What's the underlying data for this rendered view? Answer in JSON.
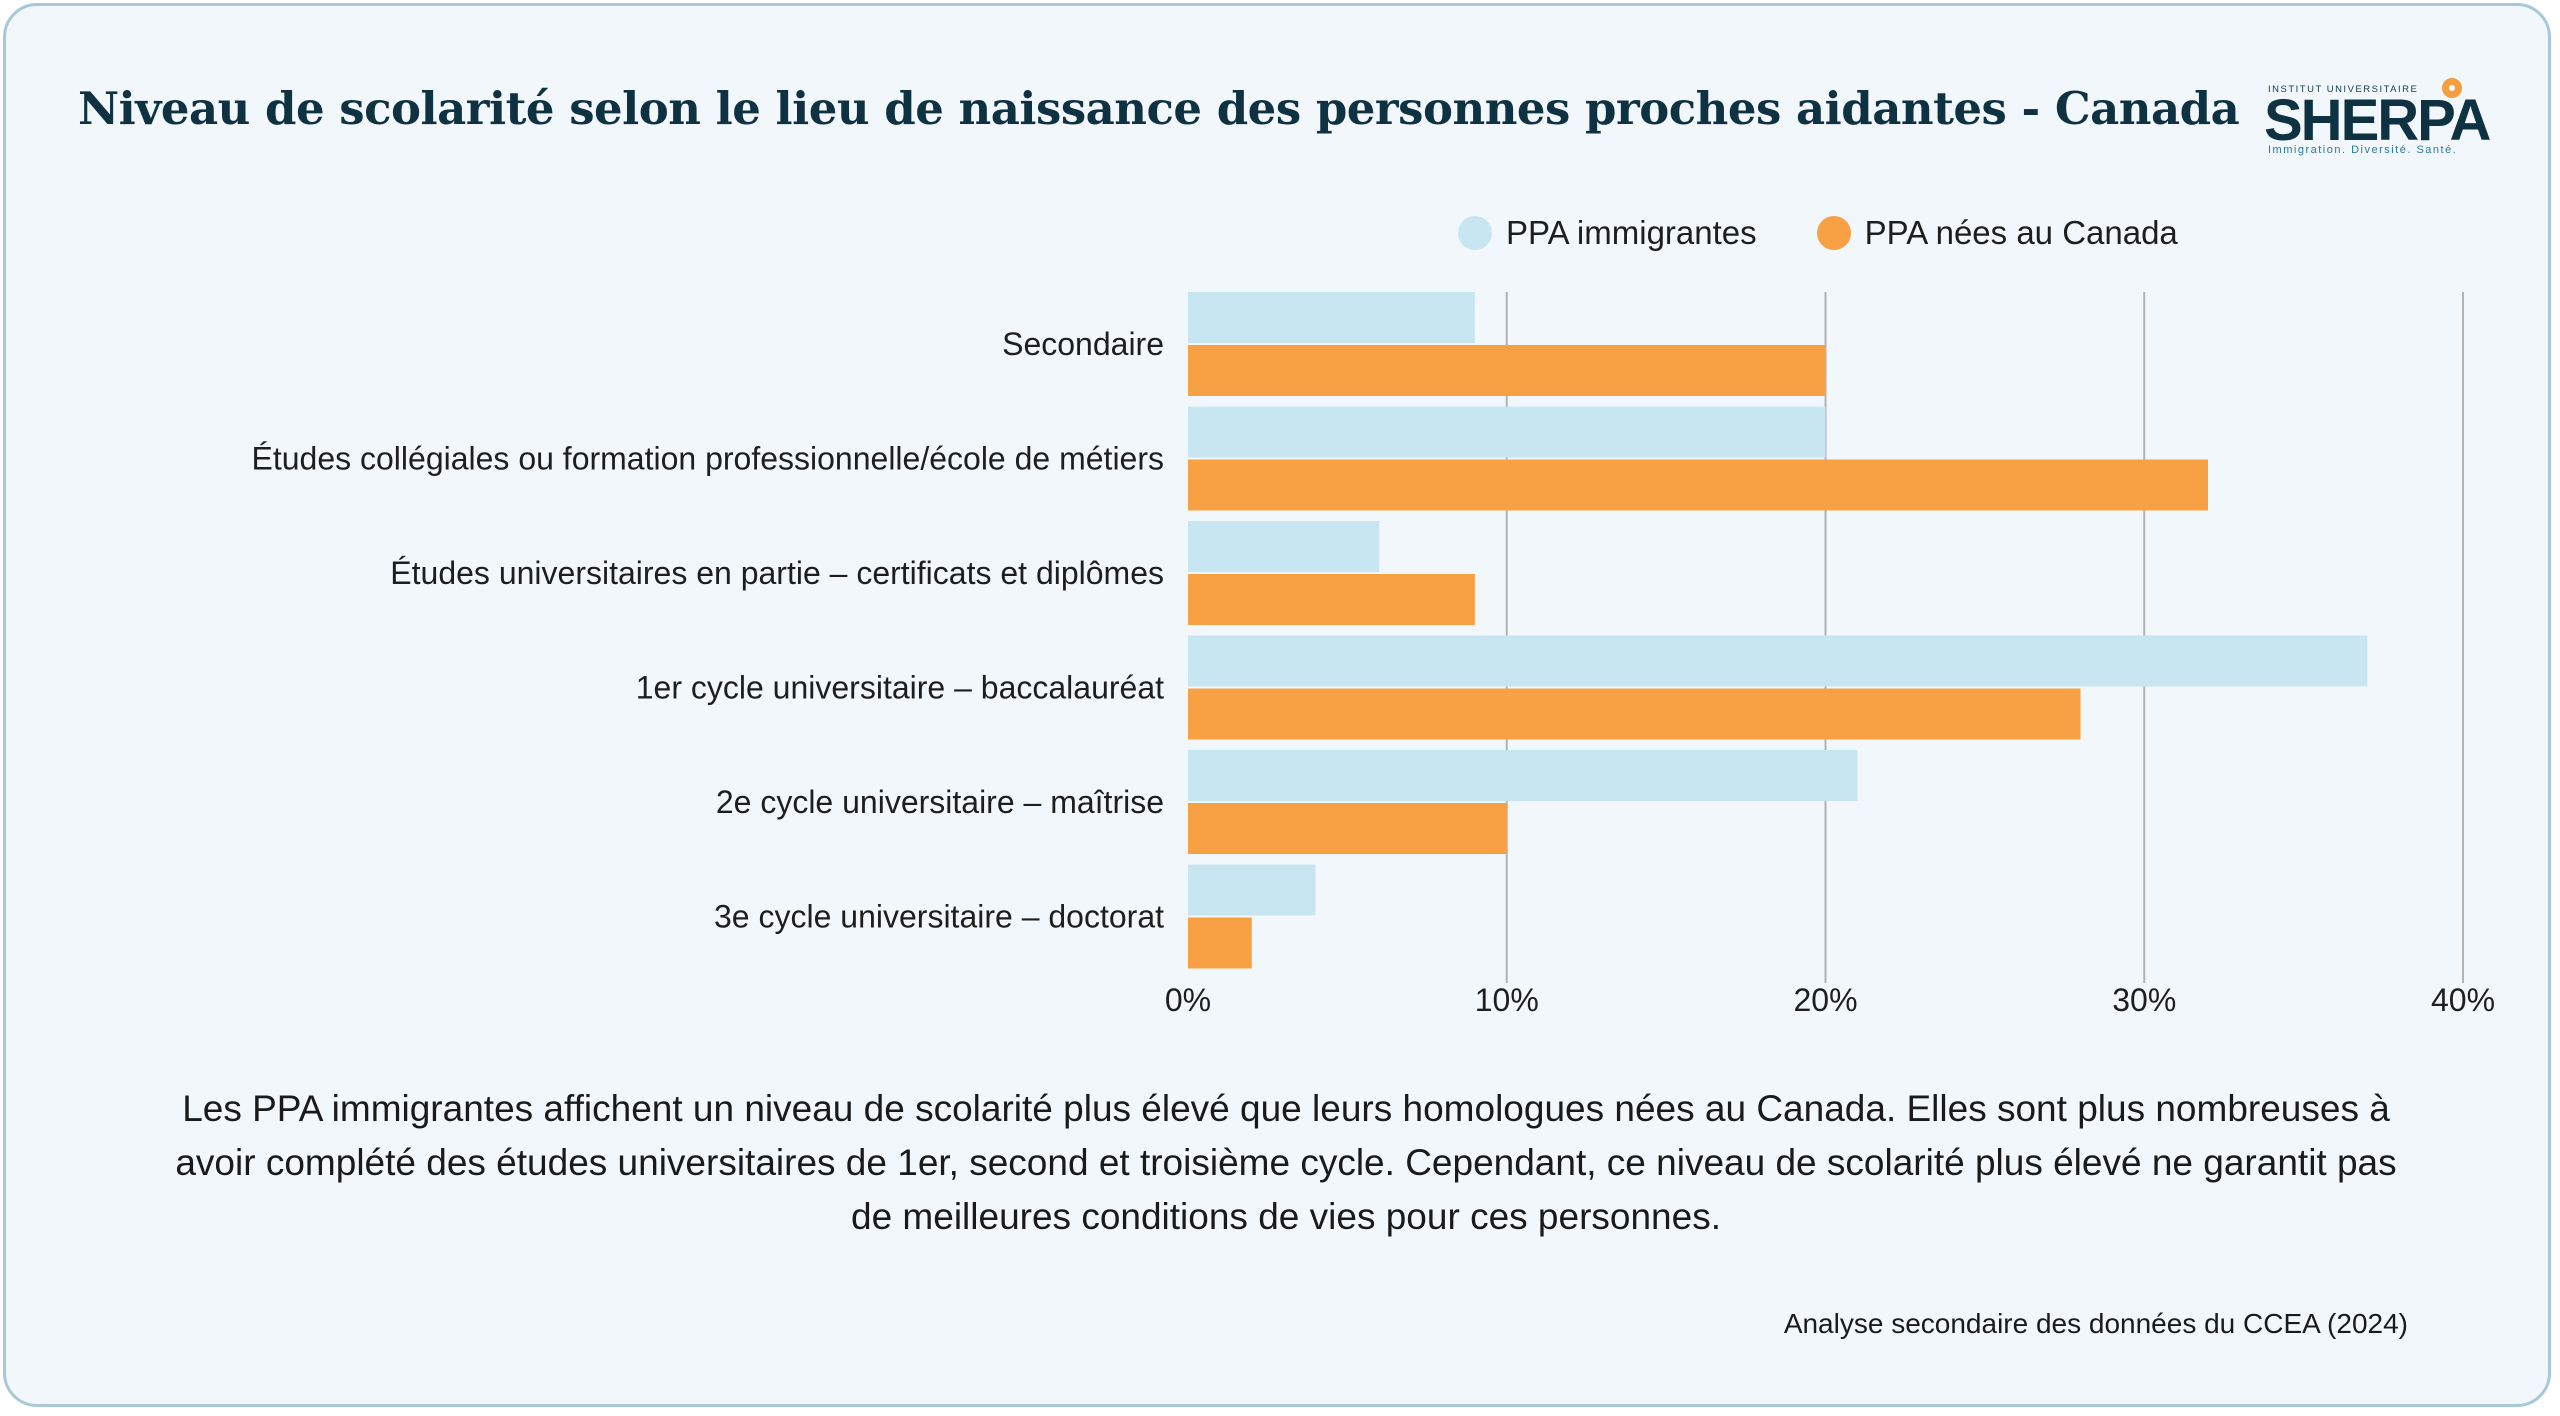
{
  "title": "Niveau de scolarité selon le lieu de naissance des personnes proches aidantes - Canada",
  "logo": {
    "top_text": "INSTITUT UNIVERSITAIRE",
    "name": "SHERPA",
    "tagline": "Immigration. Diversité. Santé."
  },
  "colors": {
    "immigrantes": "#c7e6f2",
    "nees_canada": "#f7a044",
    "title": "#0f3242",
    "card_bg": "#f2f7fb",
    "card_border": "#a9c8d8",
    "gridline": "#b3b3b3"
  },
  "chart_data": {
    "type": "bar",
    "orientation": "horizontal",
    "categories": [
      "Secondaire",
      "Études collégiales ou formation professionnelle/école de métiers",
      "Études universitaires en partie – certificats et diplômes",
      "1er cycle universitaire – baccalauréat",
      "2e cycle universitaire – maîtrise",
      "3e cycle universitaire – doctorat"
    ],
    "series": [
      {
        "name": "PPA immigrantes",
        "values": [
          9,
          20,
          6,
          37,
          21,
          4
        ]
      },
      {
        "name": "PPA nées au Canada",
        "values": [
          20,
          32,
          9,
          28,
          10,
          2
        ]
      }
    ],
    "xlim": [
      0,
      40
    ],
    "x_ticks": [
      0,
      10,
      20,
      30,
      40
    ],
    "x_tick_labels": [
      "0%",
      "10%",
      "20%",
      "30%",
      "40%"
    ],
    "grid": true,
    "legend_position": "top"
  },
  "caption": "Les PPA immigrantes affichent un niveau de scolarité plus élevé que leurs homologues nées au Canada. Elles sont plus nombreuses à avoir complété des études universitaires de 1er, second et troisième cycle.  Cependant, ce niveau de scolarité plus élevé ne garantit pas de meilleures conditions de vies pour ces personnes.",
  "source": "Analyse secondaire des données du CCEA (2024)"
}
